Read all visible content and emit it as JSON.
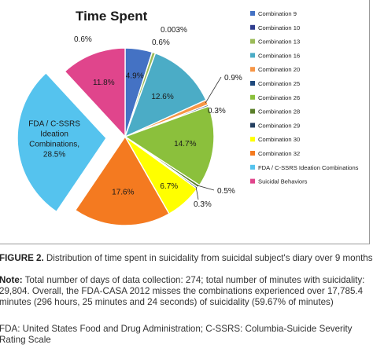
{
  "chart_data": {
    "type": "pie",
    "title": "Time Spent",
    "slices": [
      {
        "name": "Combination 9",
        "value": 4.9,
        "label": "4.9%",
        "color": "#4472c4"
      },
      {
        "name": "Combination 10",
        "value": 0.003,
        "label": "0.003%",
        "color": "#2f3d8f"
      },
      {
        "name": "Combination 13",
        "value": 0.6,
        "label": "0.6%",
        "color": "#9bbb59"
      },
      {
        "name": "Combination 16",
        "value": 12.6,
        "label": "12.6%",
        "color": "#4bacc6"
      },
      {
        "name": "Combination 20",
        "value": 0.9,
        "label": "0.9%",
        "color": "#f79646"
      },
      {
        "name": "Combination 25",
        "value": 0.3,
        "label": "0.3%",
        "color": "#1f497d"
      },
      {
        "name": "Combination 26",
        "value": 14.7,
        "label": "14.7%",
        "color": "#8bc03c"
      },
      {
        "name": "Combination 28",
        "value": 0.5,
        "label": "0.5%",
        "color": "#5a7f2a"
      },
      {
        "name": "Combination 29",
        "value": 0.3,
        "label": "0.3%",
        "color": "#243f60"
      },
      {
        "name": "Combination 30",
        "value": 6.7,
        "label": "6.7%",
        "color": "#ffff00"
      },
      {
        "name": "Combination 32",
        "value": 17.6,
        "label": "17.6%",
        "color": "#f47a20"
      },
      {
        "name": "FDA / C-SSRS Ideation Combinations",
        "value": 28.5,
        "label": "FDA / C-SSRS Ideation Combinations, 28.5%",
        "color": "#55c3ee",
        "exploded": true
      },
      {
        "name": "Suicidal Behaviors",
        "value": 11.8,
        "label": "11.8%",
        "color": "#e0458c"
      }
    ],
    "extra_labels": [
      "0.6%"
    ],
    "legend_position": "right"
  },
  "caption": {
    "figure_label": "FIGURE 2.",
    "figure_text": " Distribution of time spent in suicidality from suicidal subject's diary over 9 months",
    "note_label": "Note:",
    "note_text": " Total number of days of data collection: 274; total number of minutes with suicidality: 29,804. Overall, the FDA-CASA 2012 misses the combinations experienced over 17,785.4 minutes (296 hours, 25 minutes and 24 seconds) of suicidality (59.67% of minutes)",
    "abbrev_text": "FDA: United States Food and Drug Administration; C-SSRS: Columbia-Suicide Severity Rating Scale"
  }
}
